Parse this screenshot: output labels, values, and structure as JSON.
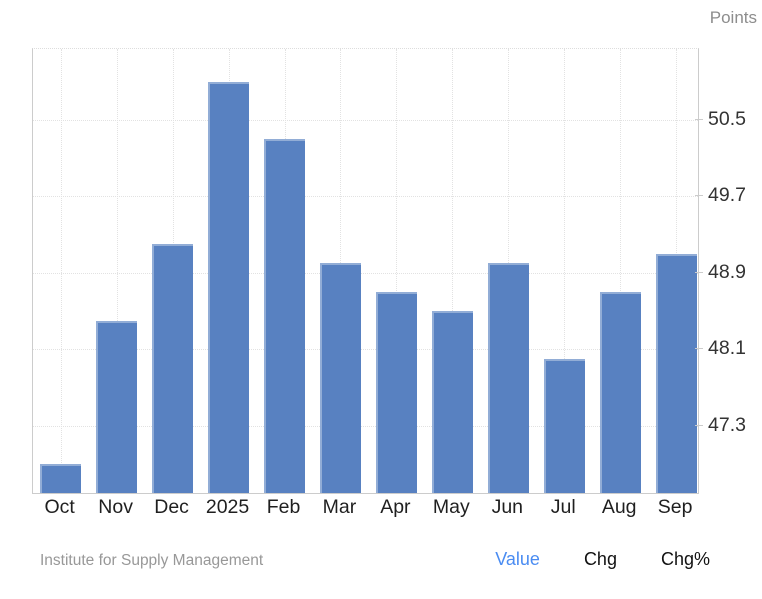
{
  "chart": {
    "units_label": "Points"
  },
  "chart_data": {
    "type": "bar",
    "categories": [
      "Oct",
      "Nov",
      "Dec",
      "2025",
      "Feb",
      "Mar",
      "Apr",
      "May",
      "Jun",
      "Jul",
      "Aug",
      "Sep"
    ],
    "values": [
      46.9,
      48.4,
      49.2,
      50.9,
      50.3,
      49.0,
      48.7,
      48.5,
      49.0,
      48.0,
      48.7,
      49.1
    ],
    "series_name": "Value",
    "title": "",
    "xlabel": "",
    "ylabel": "Points",
    "unit": "Points",
    "y_ticks": [
      47.3,
      48.1,
      48.9,
      49.7,
      50.5
    ],
    "ylim": [
      46.6,
      51.24
    ],
    "grid": true,
    "legend_position": "none",
    "bar_color": "#5881c1"
  },
  "footer": {
    "source": "Institute for Supply Management",
    "tabs": [
      {
        "label": "Value",
        "active": true
      },
      {
        "label": "Chg",
        "active": false
      },
      {
        "label": "Chg%",
        "active": false
      }
    ],
    "active_tab_color": "#4a8cf2"
  }
}
